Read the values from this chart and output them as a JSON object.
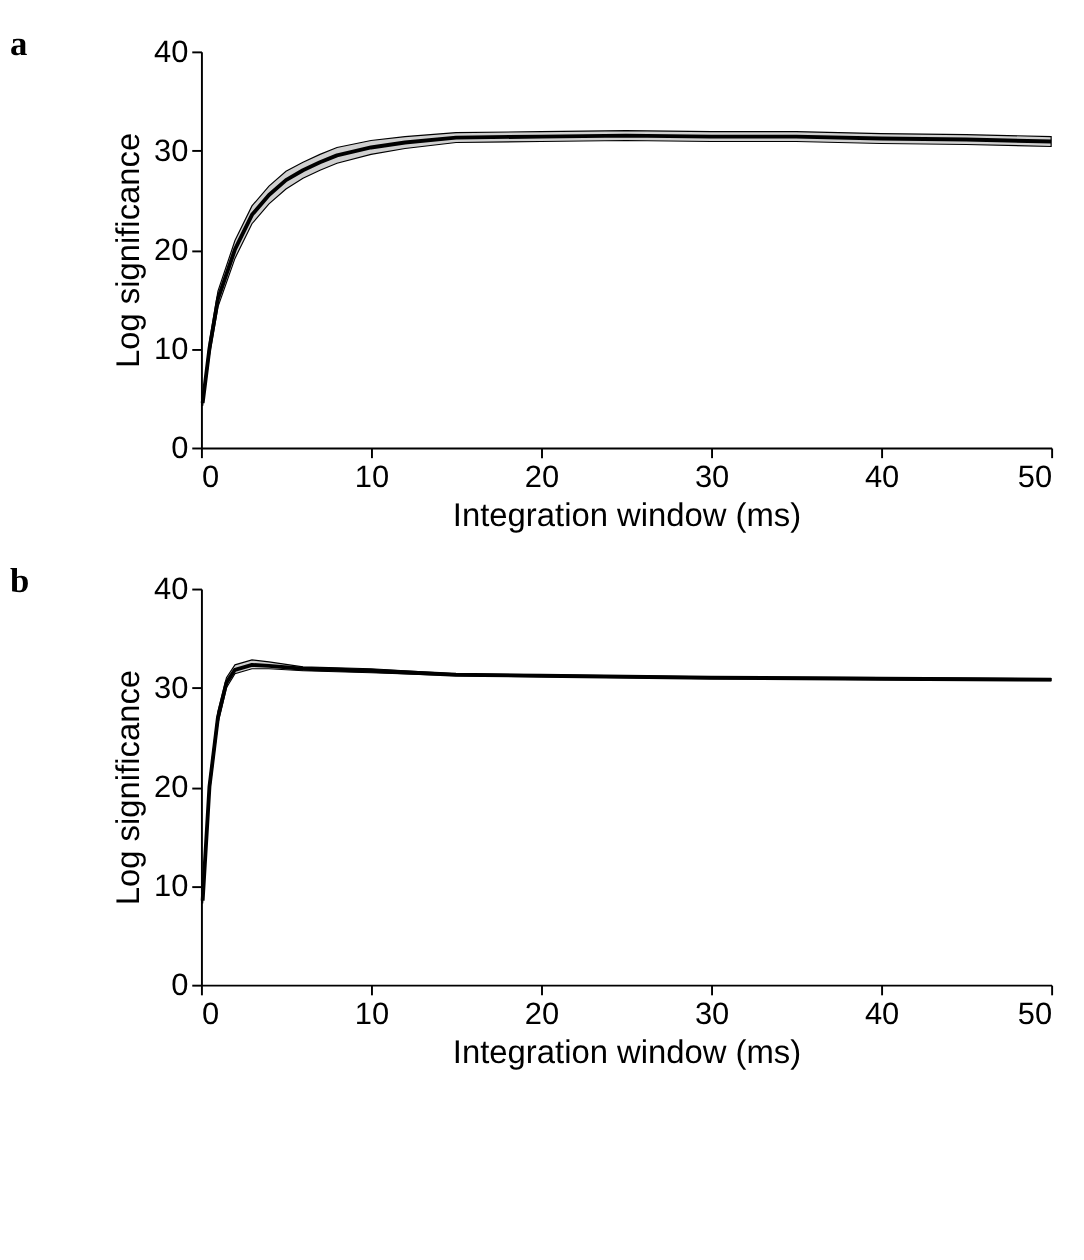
{
  "chart_data": [
    {
      "type": "line",
      "title": "a",
      "xlabel": "Integration window (ms)",
      "ylabel": "Log significance",
      "xlim": [
        0,
        50
      ],
      "ylim": [
        0,
        40
      ],
      "xticks": [
        0,
        10,
        20,
        30,
        40,
        50
      ],
      "yticks": [
        0,
        10,
        20,
        30,
        40
      ],
      "grid": false,
      "series": [
        {
          "color": "#000000",
          "x": [
            0.1,
            0.5,
            1,
            2,
            3,
            4,
            5,
            6,
            7,
            8,
            10,
            12,
            15,
            20,
            25,
            30,
            35,
            40,
            45,
            50
          ],
          "values": [
            4.5,
            10,
            15,
            20,
            23.5,
            25.5,
            27,
            28,
            28.8,
            29.5,
            30.3,
            30.8,
            31.3,
            31.4,
            31.5,
            31.4,
            31.4,
            31.2,
            31.1,
            30.9
          ],
          "lower": [
            4.2,
            9.3,
            14.2,
            19.1,
            22.6,
            24.6,
            26.1,
            27.2,
            28.0,
            28.7,
            29.6,
            30.2,
            30.8,
            30.9,
            31.0,
            30.9,
            30.9,
            30.7,
            30.6,
            30.4
          ],
          "upper": [
            4.8,
            10.7,
            15.8,
            20.9,
            24.4,
            26.4,
            27.9,
            28.8,
            29.6,
            30.3,
            31.0,
            31.4,
            31.8,
            31.9,
            32.0,
            31.9,
            31.9,
            31.7,
            31.6,
            31.4
          ]
        }
      ]
    },
    {
      "type": "line",
      "title": "b",
      "xlabel": "Integration window (ms)",
      "ylabel": "Log significance",
      "xlim": [
        0,
        50
      ],
      "ylim": [
        0,
        40
      ],
      "xticks": [
        0,
        10,
        20,
        30,
        40,
        50
      ],
      "yticks": [
        0,
        10,
        20,
        30,
        40
      ],
      "grid": false,
      "series": [
        {
          "color": "#000000",
          "x": [
            0.1,
            0.5,
            1,
            1.5,
            2,
            3,
            4,
            6,
            10,
            15,
            20,
            30,
            40,
            50
          ],
          "values": [
            8.5,
            20,
            27,
            30.5,
            31.8,
            32.3,
            32.2,
            31.9,
            31.7,
            31.3,
            31.2,
            31.0,
            30.9,
            30.8
          ],
          "lower": [
            8.2,
            19.4,
            26.4,
            30.0,
            31.4,
            31.9,
            31.9,
            31.7,
            31.5,
            31.2,
            31.1,
            30.9,
            30.8,
            30.7
          ],
          "upper": [
            8.8,
            20.6,
            27.6,
            31.0,
            32.3,
            32.8,
            32.6,
            32.1,
            31.9,
            31.4,
            31.3,
            31.1,
            31.0,
            30.9
          ]
        }
      ]
    }
  ]
}
